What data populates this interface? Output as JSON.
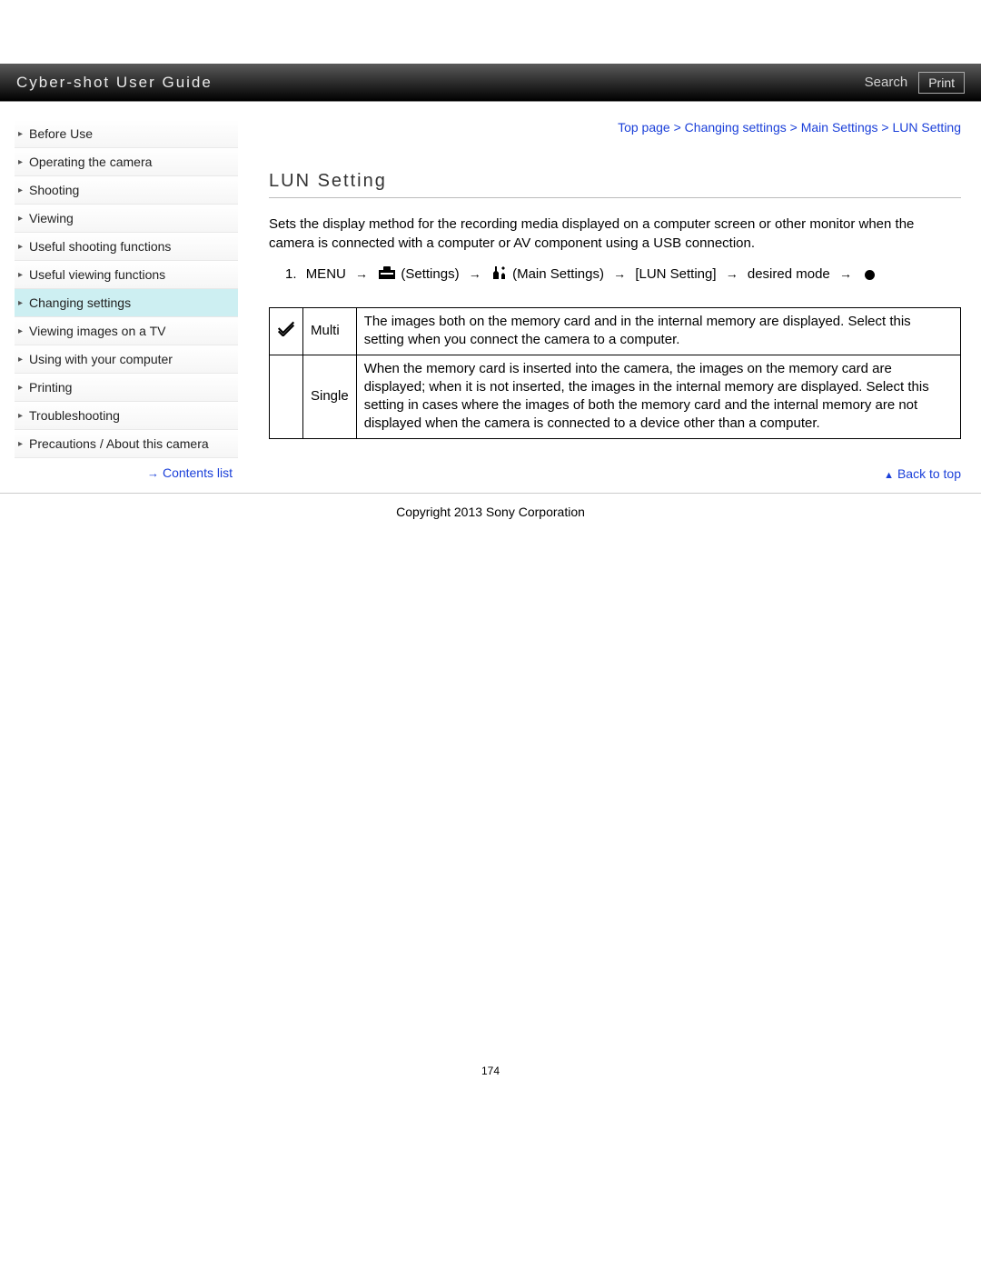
{
  "header": {
    "title": "Cyber-shot User Guide",
    "search_label": "Search",
    "print_label": "Print"
  },
  "sidebar": {
    "items": [
      {
        "label": "Before Use",
        "active": false
      },
      {
        "label": "Operating the camera",
        "active": false
      },
      {
        "label": "Shooting",
        "active": false
      },
      {
        "label": "Viewing",
        "active": false
      },
      {
        "label": "Useful shooting functions",
        "active": false
      },
      {
        "label": "Useful viewing functions",
        "active": false
      },
      {
        "label": "Changing settings",
        "active": true
      },
      {
        "label": "Viewing images on a TV",
        "active": false
      },
      {
        "label": "Using with your computer",
        "active": false
      },
      {
        "label": "Printing",
        "active": false
      },
      {
        "label": "Troubleshooting",
        "active": false
      },
      {
        "label": "Precautions / About this camera",
        "active": false
      }
    ],
    "contents_list_label": "Contents list"
  },
  "breadcrumb": {
    "parts": [
      "Top page",
      "Changing settings",
      "Main Settings",
      "LUN Setting"
    ],
    "separator": " > "
  },
  "page": {
    "title": "LUN Setting",
    "description": "Sets the display method for the recording media displayed on a computer screen or other monitor when the camera is connected with a computer or AV component using a USB connection.",
    "step_number": "1.",
    "step_parts": {
      "menu": "MENU",
      "settings": "(Settings)",
      "main_settings": "(Main Settings)",
      "lun": "[LUN Setting]",
      "desired": "desired mode"
    },
    "options": [
      {
        "check": true,
        "name": "Multi",
        "desc": "The images both on the memory card and in the internal memory are displayed. Select this setting when you connect the camera to a computer."
      },
      {
        "check": false,
        "name": "Single",
        "desc": "When the memory card is inserted into the camera, the images on the memory card are displayed; when it is not inserted, the images in the internal memory are displayed. Select this setting in cases where the images of both the memory card and the internal memory are not displayed when the camera is connected to a device other than a computer."
      }
    ],
    "back_to_top": "Back to top"
  },
  "footer": {
    "copyright": "Copyright 2013 Sony Corporation",
    "page_number": "174"
  },
  "colors": {
    "link": "#1a3fd9",
    "active_bg": "#cdeff2",
    "header_text": "#e8e8e8"
  }
}
